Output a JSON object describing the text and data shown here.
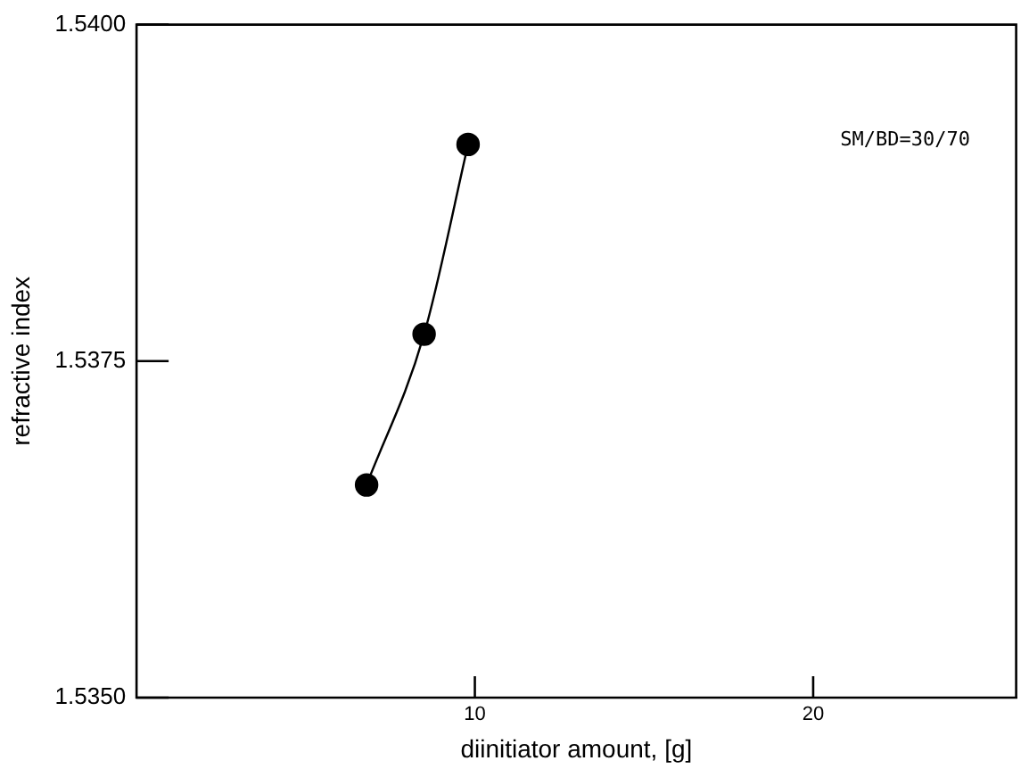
{
  "chart_data": {
    "type": "line",
    "xlabel": "diinitiator amount, [g]",
    "ylabel": "refractive index",
    "annotations": [
      "SM/BD=30/70"
    ],
    "x": [
      6.8,
      8.5,
      9.8
    ],
    "series": [
      {
        "color": "#000000",
        "values": [
          1.53658,
          1.5377,
          1.53911
        ]
      }
    ],
    "xlim": [
      0,
      26
    ],
    "xticks": [
      10,
      20
    ],
    "ylim": [
      1.535,
      1.54
    ],
    "yticks": [
      {
        "value": 1.535,
        "label": "1.5350"
      },
      {
        "value": 1.5375,
        "label": "1.5375"
      },
      {
        "value": 1.54,
        "label": "1.5400"
      }
    ],
    "marker": "circle",
    "line_style": "solid",
    "legend": false,
    "grid": false
  }
}
